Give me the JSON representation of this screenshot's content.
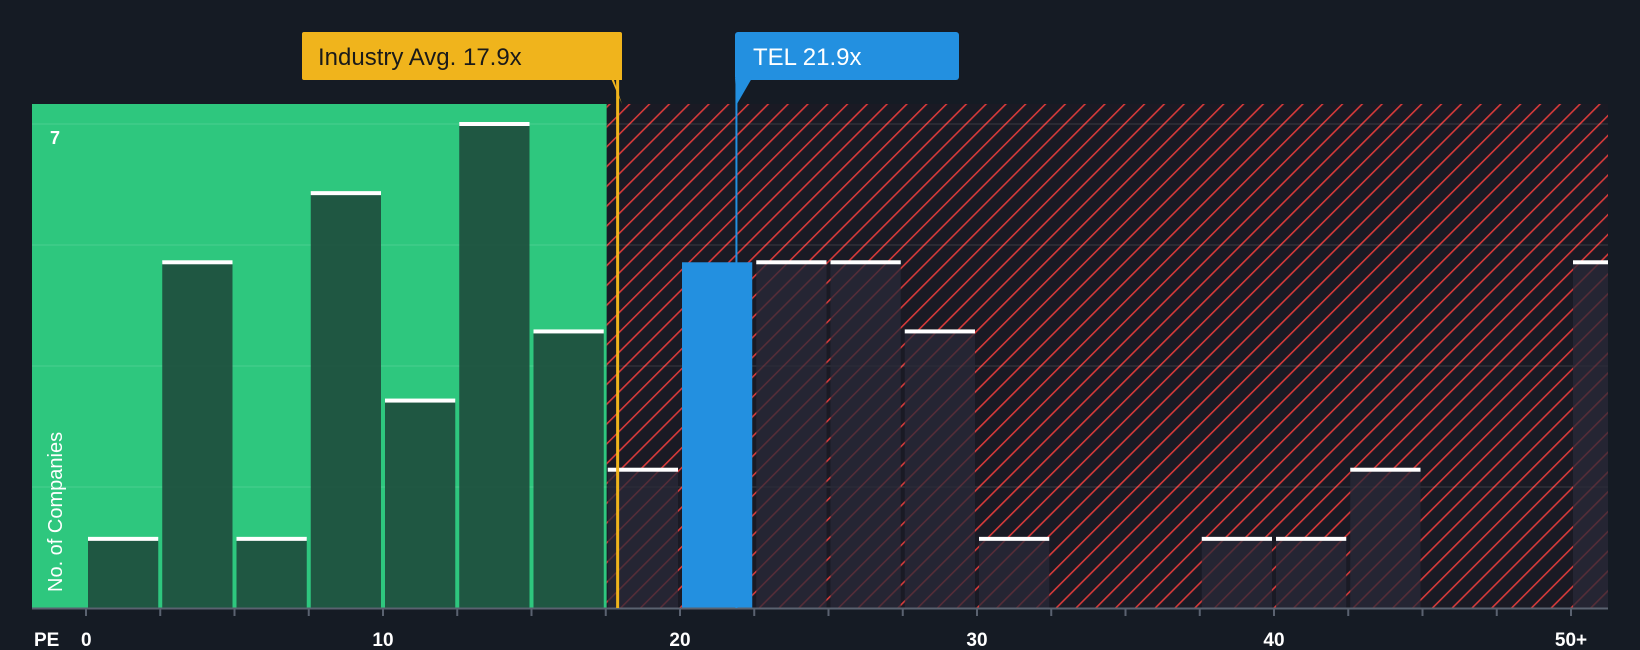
{
  "chart_data": {
    "type": "bar",
    "title": "",
    "xlabel": "PE",
    "ylabel": "No. of Companies",
    "xlim": [
      0,
      53
    ],
    "ylim": [
      0,
      7.2
    ],
    "x_ticks": [
      0,
      2.5,
      5,
      7.5,
      10,
      12.5,
      15,
      17.5,
      20,
      22.5,
      25,
      27.5,
      30,
      32.5,
      35,
      37.5,
      40,
      42.5,
      45,
      47.5,
      50
    ],
    "x_tick_labels": [
      {
        "value": 0,
        "label": "0"
      },
      {
        "value": 10,
        "label": "10"
      },
      {
        "value": 20,
        "label": "20"
      },
      {
        "value": 30,
        "label": "30"
      },
      {
        "value": 40,
        "label": "40"
      },
      {
        "value": 50,
        "label": "50+"
      }
    ],
    "y_gridlines": [
      0,
      1.75,
      3.5,
      5.25,
      7
    ],
    "y_tick_labels": [
      {
        "value": 7,
        "label": "7"
      }
    ],
    "bins": [
      {
        "start": 0,
        "end": 2.5,
        "count": 1
      },
      {
        "start": 2.5,
        "end": 5,
        "count": 5
      },
      {
        "start": 5,
        "end": 7.5,
        "count": 1
      },
      {
        "start": 7.5,
        "end": 10,
        "count": 6
      },
      {
        "start": 10,
        "end": 12.5,
        "count": 3
      },
      {
        "start": 12.5,
        "end": 15,
        "count": 7
      },
      {
        "start": 15,
        "end": 17.5,
        "count": 4
      },
      {
        "start": 17.5,
        "end": 20,
        "count": 2
      },
      {
        "start": 20,
        "end": 22.5,
        "count": 5,
        "highlight": true
      },
      {
        "start": 22.5,
        "end": 25,
        "count": 5
      },
      {
        "start": 25,
        "end": 27.5,
        "count": 5
      },
      {
        "start": 27.5,
        "end": 30,
        "count": 4
      },
      {
        "start": 30,
        "end": 32.5,
        "count": 1
      },
      {
        "start": 37.5,
        "end": 40,
        "count": 1
      },
      {
        "start": 40,
        "end": 42.5,
        "count": 1
      },
      {
        "start": 42.5,
        "end": 45,
        "count": 2
      },
      {
        "start": 50,
        "end": 53,
        "count": 5
      }
    ],
    "fair_region_end": 17.5,
    "industry_avg": {
      "label": "Industry Avg. 17.9x",
      "value": 17.9
    },
    "company": {
      "label": "TEL 21.9x",
      "value": 21.9
    },
    "colors": {
      "background": "#151b24",
      "fair_zone": "#2ec77e",
      "bar_in_fair": "#1e4a3c",
      "bar_in_expensive": "#2a2a38",
      "hatch": "#d63a3a",
      "highlight_bar": "#2390e0",
      "industry_line": "#f0b41c",
      "company_line": "#2390e0",
      "bar_cap": "#ffffff",
      "axis_text": "#ffffff"
    }
  }
}
